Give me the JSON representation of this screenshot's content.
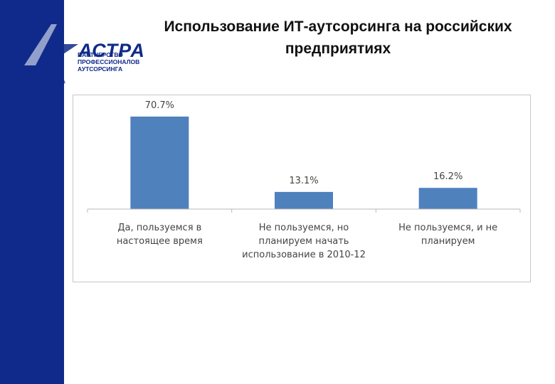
{
  "sidebar": {
    "url": "www.astra-partners.ru",
    "color": "#0f2a8a"
  },
  "logo": {
    "word": "АСТРА",
    "subtitle": [
      "ПАРТНЕРСТВО",
      "ПРОФЕССИОНАЛОВ",
      "АУТСОРСИНГА"
    ]
  },
  "title": "Использование ИТ-аутсорсинга на российских предприятиях",
  "chart_data": {
    "type": "bar",
    "categories": [
      [
        "Да, пользуемся в",
        "настоящее время"
      ],
      [
        "Не пользуемся, но",
        "планируем начать",
        "использование в 2010-12"
      ],
      [
        "Не пользуемся, и не",
        "планируем"
      ]
    ],
    "values": [
      70.7,
      13.1,
      16.2
    ],
    "value_labels": [
      "70.7%",
      "13.1%",
      "16.2%"
    ],
    "ylim": [
      0,
      75
    ],
    "bar_color": "#4f81bd",
    "grid": false,
    "legend": "none"
  }
}
